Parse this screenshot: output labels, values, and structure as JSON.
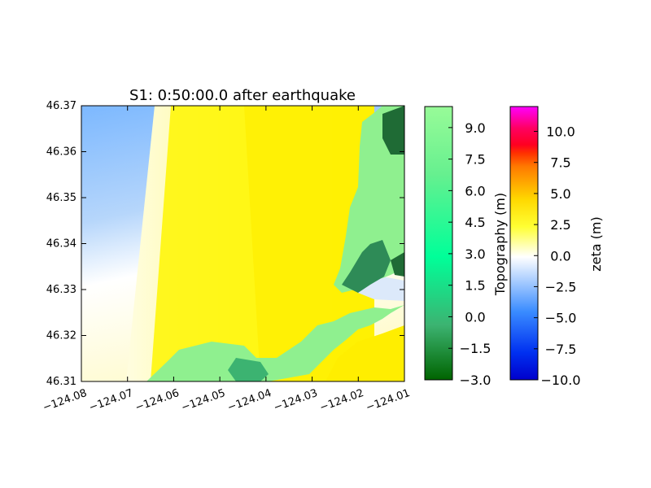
{
  "chart_data": {
    "type": "heatmap",
    "title": "S1: 0:50:00.0 after earthquake",
    "xlabel": "",
    "ylabel": "",
    "xlim": [
      -124.08,
      -124.01
    ],
    "ylim": [
      46.31,
      46.37
    ],
    "x_ticks": [
      "−124.08",
      "−124.07",
      "−124.06",
      "−124.05",
      "−124.04",
      "−124.03",
      "−124.02",
      "−124.01"
    ],
    "y_ticks": [
      "46.31",
      "46.32",
      "46.33",
      "46.34",
      "46.35",
      "46.36",
      "46.37"
    ],
    "colorbars": [
      {
        "label": "Topography (m)",
        "range": [
          -3.0,
          10.0
        ],
        "ticks": [
          "−3.0",
          "−1.5",
          "0.0",
          "1.5",
          "3.0",
          "4.5",
          "6.0",
          "7.5",
          "9.0"
        ],
        "tick_values": [
          -3.0,
          -1.5,
          0.0,
          1.5,
          3.0,
          4.5,
          6.0,
          7.5,
          9.0
        ],
        "colors": [
          "#006400",
          "#3cb371",
          "#00ff99",
          "#90ee90",
          "#98fb98"
        ]
      },
      {
        "label": "zeta (m)",
        "range": [
          -10.0,
          12.0
        ],
        "ticks": [
          "−10.0",
          "−7.5",
          "−5.0",
          "−2.5",
          "0.0",
          "2.5",
          "5.0",
          "7.5",
          "10.0"
        ],
        "tick_values": [
          -10.0,
          -7.5,
          -5.0,
          -2.5,
          0.0,
          2.5,
          5.0,
          7.5,
          10.0
        ],
        "colors": [
          "#0000cc",
          "#1e78ff",
          "#ffffff",
          "#ffff00",
          "#ff8c00",
          "#ff0000",
          "#ff00ff"
        ]
      }
    ]
  }
}
